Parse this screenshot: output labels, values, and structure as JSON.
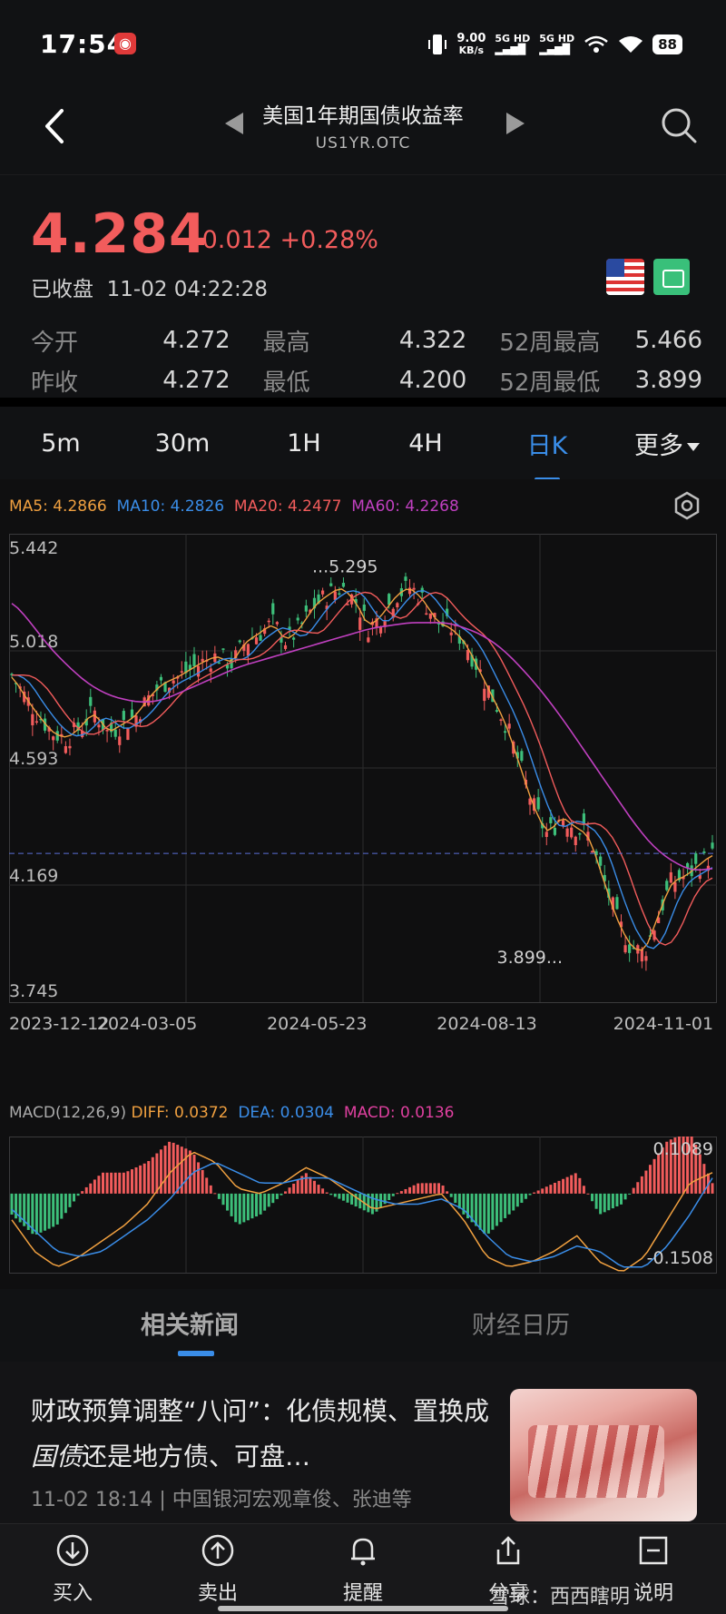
{
  "status_bar": {
    "time": "17:54",
    "net_speed_value": "9.00",
    "net_speed_unit": "KB/s",
    "signal1": "5G HD",
    "signal2": "5G HD",
    "battery": "88"
  },
  "header": {
    "title": "美国1年期国债收益率",
    "subtitle": "US1YR.OTC"
  },
  "quote": {
    "price": "4.284",
    "change": "+0.012",
    "change_pct": "+0.28%",
    "status": "已收盘",
    "datetime": "11-02 04:22:28",
    "stats": [
      [
        {
          "label": "今开",
          "value": "4.272"
        },
        {
          "label": "最高",
          "value": "4.322"
        },
        {
          "label": "52周最高",
          "value": "5.466"
        }
      ],
      [
        {
          "label": "昨收",
          "value": "4.272"
        },
        {
          "label": "最低",
          "value": "4.200"
        },
        {
          "label": "52周最低",
          "value": "3.899"
        }
      ]
    ]
  },
  "tabs": [
    "5m",
    "30m",
    "1H",
    "4H",
    "日K",
    "更多"
  ],
  "active_tab_index": 4,
  "indicators": {
    "ma": [
      {
        "label": "MA5: 4.2866",
        "color": "#f0a040"
      },
      {
        "label": "MA10: 4.2826",
        "color": "#3a8de8"
      },
      {
        "label": "MA20: 4.2477",
        "color": "#f25c5c"
      },
      {
        "label": "MA60: 4.2268",
        "color": "#c040c0"
      }
    ],
    "macd_params": "MACD(12,26,9)",
    "macd": [
      {
        "label": "DIFF: 0.0372",
        "color": "#f0a040"
      },
      {
        "label": "DEA: 0.0304",
        "color": "#3a8de8"
      },
      {
        "label": "MACD: 0.0136",
        "color": "#e040a0"
      }
    ]
  },
  "chart_data": {
    "type": "line",
    "y_ticks": [
      "5.442",
      "5.018",
      "4.593",
      "4.169",
      "3.745"
    ],
    "ylim": [
      3.745,
      5.442
    ],
    "x_ticks": [
      "2023-12-12",
      "2024-03-05",
      "2024-05-23",
      "2024-08-13",
      "2024-11-01"
    ],
    "high_label": "...5.295",
    "low_label": "3.899...",
    "current_line": 4.284,
    "series": [
      {
        "name": "MA5",
        "color": "#f0a040"
      },
      {
        "name": "MA10",
        "color": "#3a8de8"
      },
      {
        "name": "MA20",
        "color": "#f25c5c"
      },
      {
        "name": "MA60",
        "color": "#c040c0"
      }
    ],
    "price_path": [
      4.93,
      4.85,
      4.78,
      4.72,
      4.7,
      4.74,
      4.8,
      4.72,
      4.75,
      4.78,
      4.85,
      4.9,
      4.92,
      4.95,
      4.98,
      5.0,
      4.97,
      5.05,
      5.08,
      5.12,
      5.05,
      5.1,
      5.18,
      5.22,
      5.25,
      5.2,
      5.1,
      5.15,
      5.22,
      5.25,
      5.2,
      5.12,
      5.1,
      5.05,
      4.95,
      4.85,
      4.75,
      4.6,
      4.45,
      4.35,
      4.42,
      4.38,
      4.35,
      4.2,
      4.05,
      3.95,
      3.92,
      4.05,
      4.18,
      4.2,
      4.24,
      4.28
    ],
    "ma60_path": [
      5.2,
      5.12,
      5.03,
      4.96,
      4.9,
      4.86,
      4.84,
      4.83,
      4.84,
      4.87,
      4.9,
      4.93,
      4.96,
      4.98,
      5.0,
      5.02,
      5.04,
      5.06,
      5.08,
      5.1,
      5.11,
      5.12,
      5.12,
      5.12,
      5.1,
      5.07,
      5.02,
      4.95,
      4.87,
      4.78,
      4.68,
      4.58,
      4.48,
      4.38,
      4.3,
      4.25,
      4.22,
      4.23
    ],
    "macd_ticks": [
      "0.1089",
      "-0.1508"
    ],
    "macd_ylim": [
      -0.1508,
      0.1089
    ],
    "diff_path": [
      -0.05,
      -0.11,
      -0.14,
      -0.12,
      -0.09,
      -0.06,
      -0.02,
      0.04,
      0.08,
      0.06,
      0.01,
      0.0,
      0.02,
      0.05,
      0.03,
      0.0,
      -0.03,
      -0.02,
      -0.01,
      0.0,
      -0.05,
      -0.12,
      -0.14,
      -0.13,
      -0.11,
      -0.08,
      -0.13,
      -0.15,
      -0.12,
      -0.05,
      0.02,
      0.04
    ],
    "dea_path": [
      -0.03,
      -0.07,
      -0.11,
      -0.12,
      -0.11,
      -0.08,
      -0.05,
      -0.01,
      0.04,
      0.06,
      0.04,
      0.02,
      0.02,
      0.03,
      0.03,
      0.01,
      -0.01,
      -0.02,
      -0.02,
      -0.01,
      -0.03,
      -0.08,
      -0.12,
      -0.13,
      -0.12,
      -0.1,
      -0.11,
      -0.14,
      -0.14,
      -0.1,
      -0.04,
      0.03
    ]
  },
  "news_tabs": [
    "相关新闻",
    "财经日历"
  ],
  "news": {
    "title_part1": "财政预算调整“八问”：化债规模、置换成",
    "title_italic": "国债",
    "title_part2": "还是地方债、可盘…",
    "meta": "11-02 18:14 | 中国银河宏观章俊、张迪等"
  },
  "bottom_nav": [
    "买入",
    "卖出",
    "提醒",
    "分享",
    "说明"
  ],
  "watermark": "雪球：西西瞎明"
}
